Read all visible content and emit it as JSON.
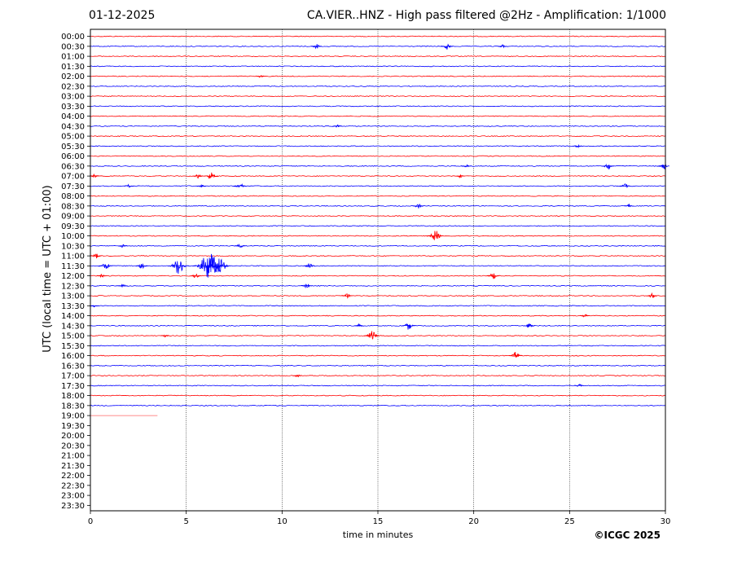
{
  "header": {
    "date": "01-12-2025",
    "title": "CA.VIER..HNZ - High pass filtered @2Hz - Amplification: 1/1000"
  },
  "credit": "©ICGC 2025",
  "colors": {
    "red": "#ff0000",
    "blue": "#0000ff"
  },
  "chart_data": {
    "type": "seismogram",
    "title": "CA.VIER..HNZ - High pass filtered @2Hz - Amplification: 1/1000",
    "xlabel": "time in minutes",
    "ylabel": "UTC (local time = UTC + 01:00)",
    "xlim": [
      0,
      30
    ],
    "x_ticks": [
      0,
      5,
      10,
      15,
      20,
      25,
      30
    ],
    "vertical_gridlines": [
      5,
      10,
      15,
      20,
      25
    ],
    "row_labels": [
      "00:00",
      "00:30",
      "01:00",
      "01:30",
      "02:00",
      "02:30",
      "03:00",
      "03:30",
      "04:00",
      "04:30",
      "05:00",
      "05:30",
      "06:00",
      "06:30",
      "07:00",
      "07:30",
      "08:00",
      "08:30",
      "09:00",
      "09:30",
      "10:00",
      "10:30",
      "11:00",
      "11:30",
      "12:00",
      "12:30",
      "13:00",
      "13:30",
      "14:00",
      "14:30",
      "15:00",
      "15:30",
      "16:00",
      "16:30",
      "17:00",
      "17:30",
      "18:00",
      "18:30",
      "19:00",
      "19:30",
      "20:00",
      "20:30",
      "21:00",
      "21:30",
      "22:00",
      "22:30",
      "23:00",
      "23:30"
    ],
    "row_colors_alternate": [
      "red",
      "blue"
    ],
    "rows_with_full_trace": 38,
    "partial_trace": {
      "row": "19:00",
      "end_minute": 3.5
    },
    "events": [
      {
        "row": "00:30",
        "minute": 11.8,
        "amp": 3
      },
      {
        "row": "00:30",
        "minute": 18.6,
        "amp": 4
      },
      {
        "row": "00:30",
        "minute": 21.5,
        "amp": 2
      },
      {
        "row": "02:00",
        "minute": 8.9,
        "amp": 2
      },
      {
        "row": "04:30",
        "minute": 12.9,
        "amp": 2
      },
      {
        "row": "05:30",
        "minute": 25.4,
        "amp": 2
      },
      {
        "row": "06:30",
        "minute": 19.6,
        "amp": 2
      },
      {
        "row": "06:30",
        "minute": 27.0,
        "amp": 4
      },
      {
        "row": "06:30",
        "minute": 29.9,
        "amp": 4
      },
      {
        "row": "07:00",
        "minute": 0.2,
        "amp": 2
      },
      {
        "row": "07:00",
        "minute": 5.6,
        "amp": 3
      },
      {
        "row": "07:00",
        "minute": 6.3,
        "amp": 5
      },
      {
        "row": "07:00",
        "minute": 19.3,
        "amp": 2
      },
      {
        "row": "07:30",
        "minute": 2.0,
        "amp": 2
      },
      {
        "row": "07:30",
        "minute": 5.8,
        "amp": 2
      },
      {
        "row": "07:30",
        "minute": 7.8,
        "amp": 4
      },
      {
        "row": "07:30",
        "minute": 27.9,
        "amp": 3
      },
      {
        "row": "08:30",
        "minute": 17.1,
        "amp": 3
      },
      {
        "row": "08:30",
        "minute": 28.1,
        "amp": 2
      },
      {
        "row": "10:00",
        "minute": 18.0,
        "amp": 7
      },
      {
        "row": "10:30",
        "minute": 1.7,
        "amp": 2
      },
      {
        "row": "10:30",
        "minute": 7.8,
        "amp": 3
      },
      {
        "row": "11:00",
        "minute": 0.3,
        "amp": 3
      },
      {
        "row": "11:30",
        "minute": 0.8,
        "amp": 5
      },
      {
        "row": "11:30",
        "minute": 2.7,
        "amp": 4
      },
      {
        "row": "11:30",
        "minute": 4.6,
        "amp": 10
      },
      {
        "row": "11:30",
        "minute": 6.2,
        "amp": 18
      },
      {
        "row": "11:30",
        "minute": 6.7,
        "amp": 12
      },
      {
        "row": "11:30",
        "minute": 11.4,
        "amp": 4
      },
      {
        "row": "12:00",
        "minute": 0.6,
        "amp": 2
      },
      {
        "row": "12:00",
        "minute": 5.5,
        "amp": 3
      },
      {
        "row": "12:00",
        "minute": 21.0,
        "amp": 4
      },
      {
        "row": "12:30",
        "minute": 1.7,
        "amp": 2
      },
      {
        "row": "12:30",
        "minute": 11.3,
        "amp": 3
      },
      {
        "row": "13:00",
        "minute": 13.4,
        "amp": 3
      },
      {
        "row": "13:00",
        "minute": 29.3,
        "amp": 3
      },
      {
        "row": "13:30",
        "minute": 0.2,
        "amp": 2
      },
      {
        "row": "14:00",
        "minute": 25.8,
        "amp": 2
      },
      {
        "row": "14:30",
        "minute": 14.0,
        "amp": 2
      },
      {
        "row": "14:30",
        "minute": 16.6,
        "amp": 5
      },
      {
        "row": "14:30",
        "minute": 22.9,
        "amp": 3
      },
      {
        "row": "15:00",
        "minute": 3.9,
        "amp": 2
      },
      {
        "row": "15:00",
        "minute": 14.7,
        "amp": 6
      },
      {
        "row": "16:00",
        "minute": 22.2,
        "amp": 5
      },
      {
        "row": "17:00",
        "minute": 10.8,
        "amp": 2
      },
      {
        "row": "17:30",
        "minute": 25.5,
        "amp": 2
      }
    ]
  }
}
